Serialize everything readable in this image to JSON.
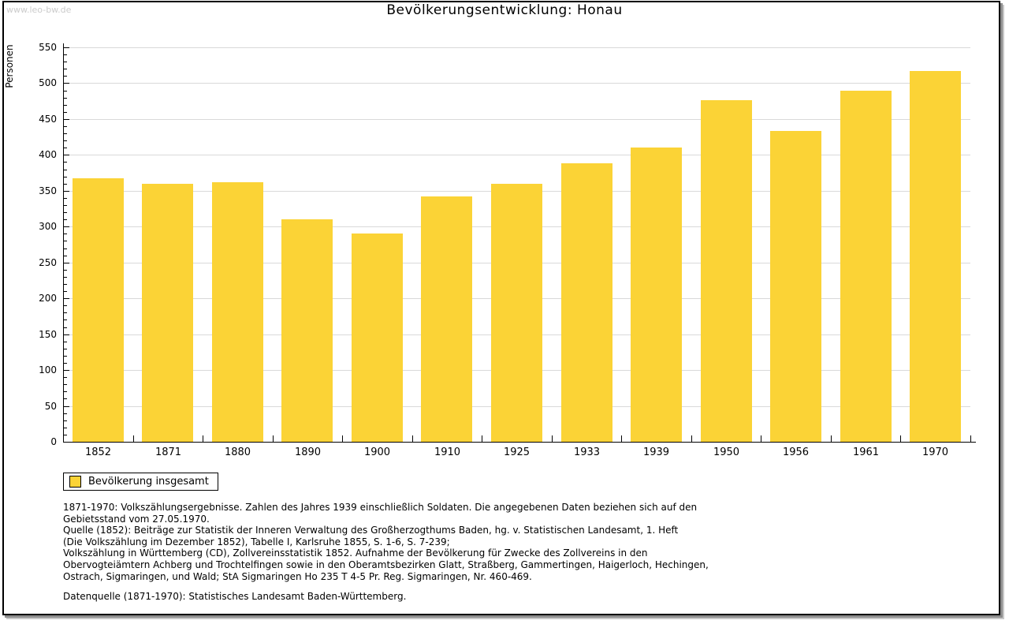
{
  "page": {
    "watermark": "www.leo-bw.de",
    "title": "Bevölkerungsentwicklung: Honau"
  },
  "chart_data": {
    "type": "bar",
    "title": "Bevölkerungsentwicklung: Honau",
    "xlabel": "",
    "ylabel": "Personen",
    "categories": [
      "1852",
      "1871",
      "1880",
      "1890",
      "1900",
      "1910",
      "1925",
      "1933",
      "1939",
      "1950",
      "1956",
      "1961",
      "1970"
    ],
    "values": [
      367,
      360,
      362,
      310,
      290,
      342,
      360,
      388,
      410,
      476,
      433,
      489,
      517
    ],
    "series_name": "Bevölkerung insgesamt",
    "ylim": [
      0,
      550
    ],
    "ytick_step": 50,
    "yminor_step": 10,
    "grid": "horizontal-only",
    "legend_position": "below-left",
    "bar_color": "#fbd336",
    "gridline_color": "#d9d9d9",
    "axis_color": "#000000"
  },
  "legend": {
    "label": "Bevölkerung insgesamt",
    "swatch_color": "#fbd336"
  },
  "notes": {
    "lines": [
      "1871-1970: Volkszählungsergebnisse. Zahlen des Jahres 1939 einschließlich Soldaten. Die angegebenen Daten beziehen sich auf den",
      "Gebietsstand vom 27.05.1970.",
      "Quelle (1852): Beiträge zur Statistik der Inneren Verwaltung des Großherzogthums Baden, hg. v. Statistischen Landesamt, 1. Heft",
      "(Die Volkszählung im Dezember 1852), Tabelle I, Karlsruhe 1855, S. 1-6, S. 7-239;",
      "Volkszählung in Württemberg (CD), Zollvereinsstatistik 1852. Aufnahme der Bevölkerung für Zwecke des Zollvereins in den",
      "Obervogteiämtern Achberg und Trochtelfingen sowie in den Oberamtsbezirken Glatt, Straßberg, Gammertingen, Haigerloch, Hechingen,",
      "Ostrach, Sigmaringen, und Wald; StA Sigmaringen Ho 235 T 4-5 Pr. Reg. Sigmaringen, Nr. 460-469."
    ],
    "datasource": "Datenquelle (1871-1970): Statistisches Landesamt Baden-Württemberg."
  }
}
